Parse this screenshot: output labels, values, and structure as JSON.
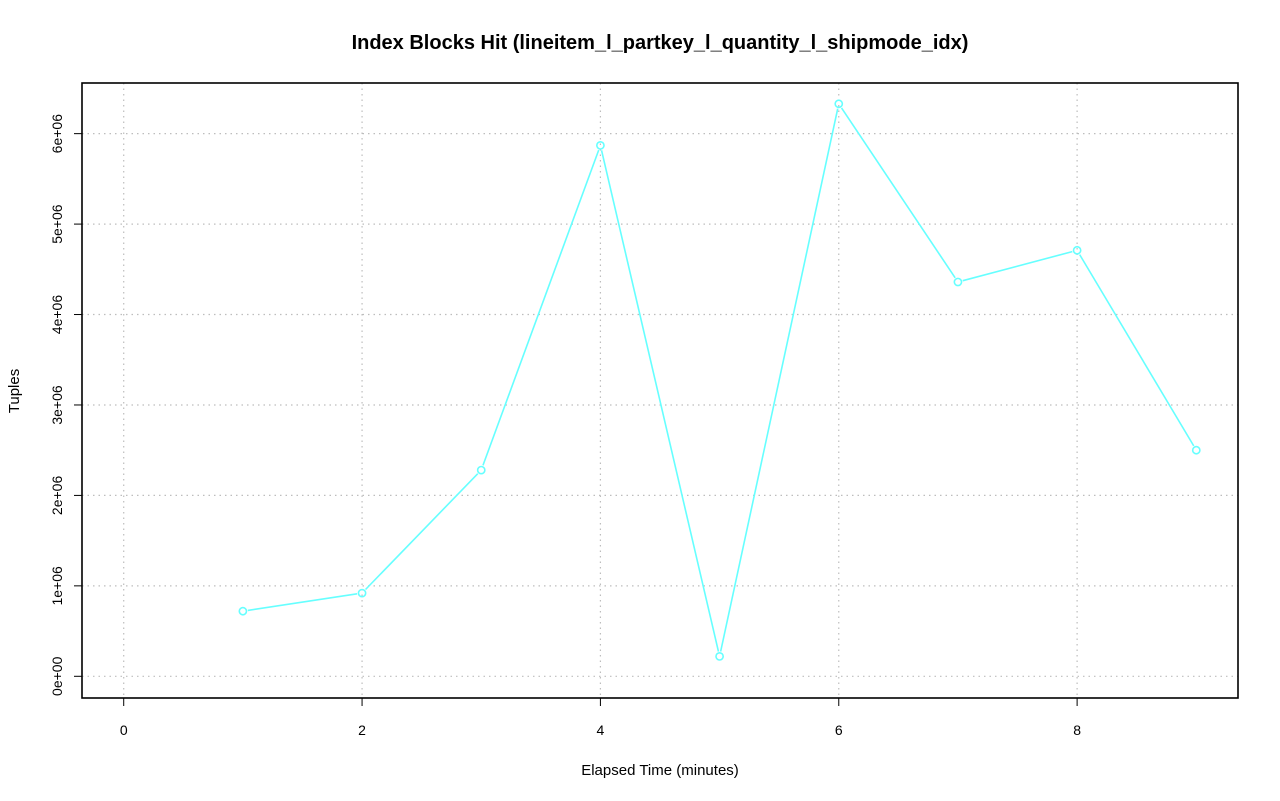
{
  "chart_data": {
    "type": "line",
    "title": "Index Blocks Hit (lineitem_l_partkey_l_quantity_l_shipmode_idx)",
    "xlabel": "Elapsed Time (minutes)",
    "ylabel": "Tuples",
    "xlim": [
      -0.35,
      9.35
    ],
    "ylim": [
      -240000,
      6560000
    ],
    "x_ticks": [
      0,
      2,
      4,
      6,
      8
    ],
    "x_tick_labels": [
      "0",
      "2",
      "4",
      "6",
      "8"
    ],
    "y_ticks": [
      0,
      1000000,
      2000000,
      3000000,
      4000000,
      5000000,
      6000000
    ],
    "y_tick_labels": [
      "0e+00",
      "1e+06",
      "2e+06",
      "3e+06",
      "4e+06",
      "5e+06",
      "6e+06"
    ],
    "grid": true,
    "series": [
      {
        "color": "#66ffff",
        "marker": "circle",
        "x": [
          1,
          2,
          3,
          4,
          5,
          6,
          7,
          8,
          9
        ],
        "y": [
          720000,
          920000,
          2280000,
          5870000,
          220000,
          6330000,
          4360000,
          4710000,
          2500000
        ]
      }
    ]
  }
}
